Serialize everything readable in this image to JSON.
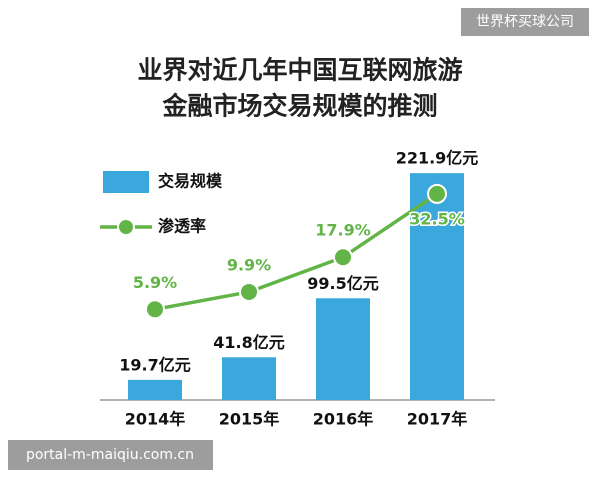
{
  "chart_data": {
    "type": "bar",
    "title": [
      "业界对近几年中国互联网旅游",
      "金融市场交易规模的推测"
    ],
    "categories": [
      "2014年",
      "2015年",
      "2016年",
      "2017年"
    ],
    "series": [
      {
        "name": "交易规模",
        "type": "bar",
        "color": "#3aa8dd",
        "values": [
          19.7,
          41.8,
          99.5,
          221.9
        ],
        "value_labels": [
          "19.7亿元",
          "41.8亿元",
          "99.5亿元",
          "221.9亿元"
        ]
      },
      {
        "name": "渗透率",
        "type": "line",
        "axis": "y2",
        "color": "#62b447",
        "values": [
          5.9,
          9.9,
          17.9,
          32.5
        ],
        "value_labels": [
          "5.9%",
          "9.9%",
          "17.9%",
          "32.5%"
        ]
      }
    ],
    "ylim": [
      0,
      225
    ],
    "y2lim": [
      -15,
      38
    ]
  },
  "watermarks": {
    "top_right": "世界杯买球公司",
    "bottom_left": "portal-m-maiqiu.com.cn"
  }
}
